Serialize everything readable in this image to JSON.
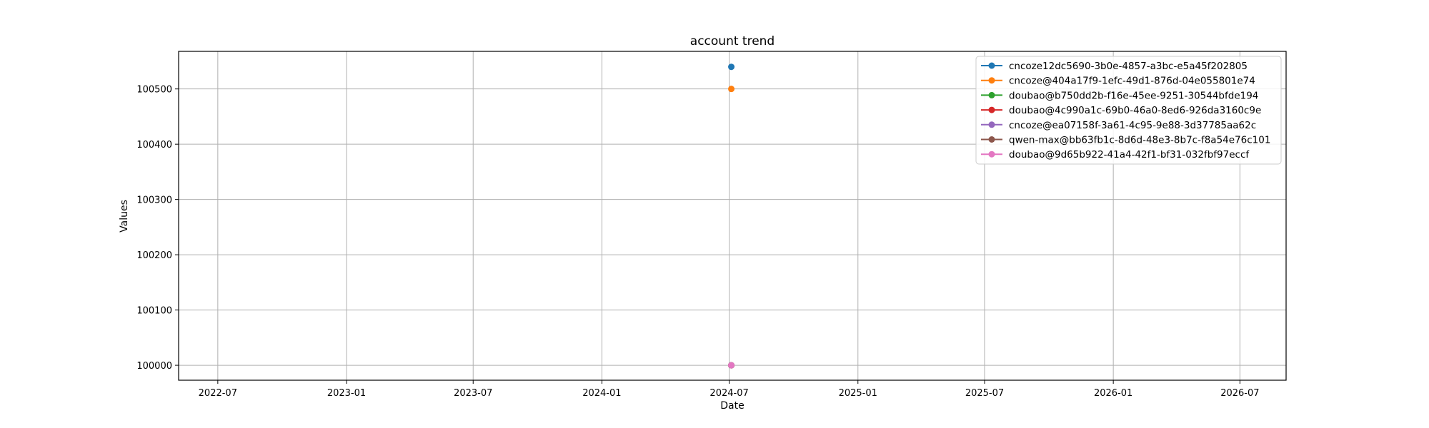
{
  "chart_data": {
    "type": "line",
    "title": "account trend",
    "xlabel": "Date",
    "ylabel": "Values",
    "x_ticks": [
      "2022-07",
      "2023-01",
      "2023-07",
      "2024-01",
      "2024-07",
      "2025-01",
      "2025-07",
      "2026-01",
      "2026-07"
    ],
    "y_ticks": [
      100000,
      100100,
      100200,
      100300,
      100400,
      100500
    ],
    "xlim": [
      "2022-05-06",
      "2026-09-05"
    ],
    "ylim": [
      99973,
      100568
    ],
    "grid": true,
    "legend_position": "top-right",
    "series": [
      {
        "name": "cncoze12dc5690-3b0e-4857-a3bc-e5a45f202805",
        "color": "#1f77b4",
        "points": [
          {
            "x": "2024-07-04",
            "y": 100540
          }
        ]
      },
      {
        "name": "cncoze@404a17f9-1efc-49d1-876d-04e055801e74",
        "color": "#ff7f0e",
        "points": [
          {
            "x": "2024-07-04",
            "y": 100500
          }
        ]
      },
      {
        "name": "doubao@b750dd2b-f16e-45ee-9251-30544bfde194",
        "color": "#2ca02c",
        "points": [
          {
            "x": "2024-07-04",
            "y": 100000
          }
        ]
      },
      {
        "name": "doubao@4c990a1c-69b0-46a0-8ed6-926da3160c9e",
        "color": "#d62728",
        "points": [
          {
            "x": "2024-07-04",
            "y": 100000
          }
        ]
      },
      {
        "name": "cncoze@ea07158f-3a61-4c95-9e88-3d37785aa62c",
        "color": "#9467bd",
        "points": [
          {
            "x": "2024-07-04",
            "y": 100000
          }
        ]
      },
      {
        "name": "qwen-max@bb63fb1c-8d6d-48e3-8b7c-f8a54e76c101",
        "color": "#8c564b",
        "points": [
          {
            "x": "2024-07-04",
            "y": 100000
          }
        ]
      },
      {
        "name": "doubao@9d65b922-41a4-42f1-bf31-032fbf97eccf",
        "color": "#e377c2",
        "points": [
          {
            "x": "2024-07-04",
            "y": 100000
          }
        ]
      }
    ]
  }
}
